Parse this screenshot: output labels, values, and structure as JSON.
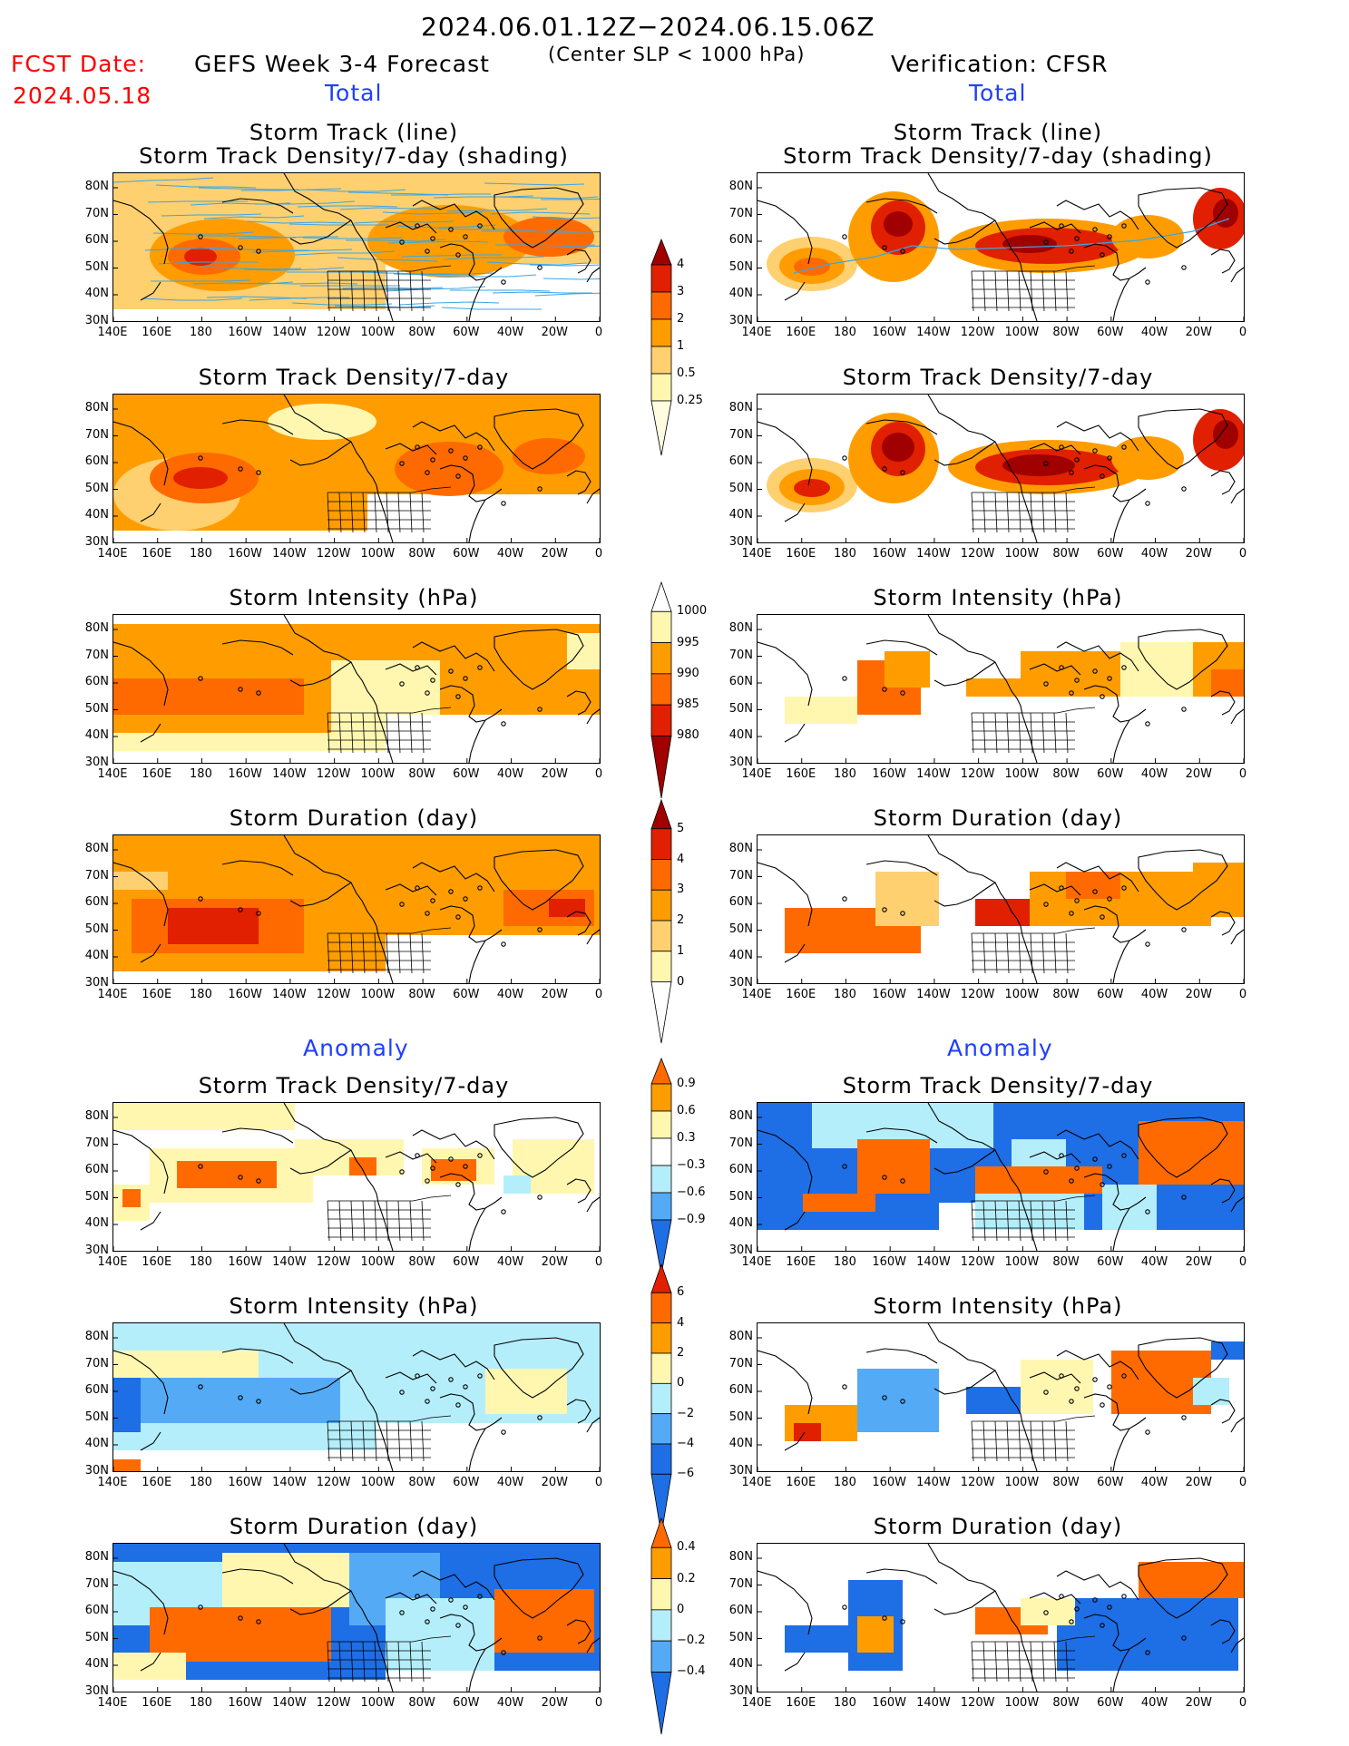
{
  "header": {
    "date_range": "2024.06.01.12Z−2024.06.15.06Z",
    "fcst_label": "FCST Date:",
    "fcst_date": "2024.05.18",
    "left_title": "GEFS Week 3-4 Forecast",
    "center_note": "(Center SLP < 1000 hPa)",
    "right_title": "Verification: CFSR",
    "total_left": "Total",
    "total_right": "Total",
    "anomaly_left": "Anomaly",
    "anomaly_right": "Anomaly"
  },
  "panel_titles": {
    "track_line": "Storm Track (line)",
    "track_density_shading": "Storm Track Density/7-day (shading)",
    "track_density": "Storm Track Density/7-day",
    "intensity": "Storm Intensity (hPa)",
    "duration": "Storm Duration (day)"
  },
  "axes": {
    "lat_labels": [
      "80N",
      "70N",
      "60N",
      "50N",
      "40N",
      "30N"
    ],
    "lon_labels": [
      "140E",
      "160E",
      "180",
      "160W",
      "140W",
      "120W",
      "100W",
      "80W",
      "60W",
      "40W",
      "20W",
      "0"
    ]
  },
  "colorbars": {
    "density_total": [
      "4",
      "3",
      "2",
      "1",
      "0.5",
      "0.25"
    ],
    "intensity_total": [
      "1000",
      "995",
      "990",
      "985",
      "980"
    ],
    "duration_total": [
      "5",
      "4",
      "3",
      "2",
      "1",
      "0"
    ],
    "density_anom": [
      "0.9",
      "0.6",
      "0.3",
      "−0.3",
      "−0.6",
      "−0.9"
    ],
    "intensity_anom": [
      "6",
      "4",
      "2",
      "0",
      "−2",
      "−4",
      "−6"
    ],
    "duration_anom": [
      "0.4",
      "0.2",
      "0",
      "−0.2",
      "−0.4"
    ]
  },
  "colors": {
    "pale_yellow": "#fff7b0",
    "light_orange": "#ffd070",
    "orange": "#ff9d00",
    "dark_orange": "#ff6a00",
    "red": "#e02000",
    "dark_red": "#a00000",
    "light_blue": "#b4eefa",
    "mid_blue": "#55aaf5",
    "blue": "#1e6ee6",
    "track_line": "#39a6e6"
  }
}
